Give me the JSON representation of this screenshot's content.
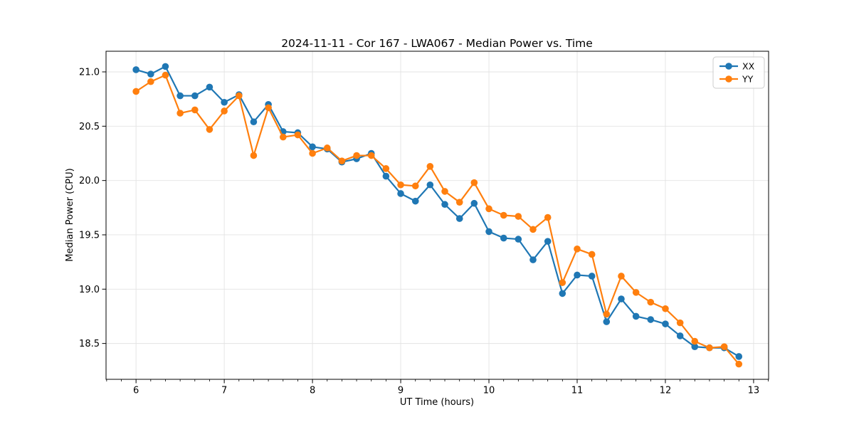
{
  "figure": {
    "background": "#ffffff"
  },
  "chart_data": {
    "type": "line",
    "title": "2024-11-11 - Cor 167 - LWA067 - Median Power vs. Time",
    "xlabel": "UT Time (hours)",
    "ylabel": "Median Power (CPU)",
    "x": [
      6.0,
      6.167,
      6.333,
      6.5,
      6.667,
      6.833,
      7.0,
      7.167,
      7.333,
      7.5,
      7.667,
      7.833,
      8.0,
      8.167,
      8.333,
      8.5,
      8.667,
      8.833,
      9.0,
      9.167,
      9.333,
      9.5,
      9.667,
      9.833,
      10.0,
      10.167,
      10.333,
      10.5,
      10.667,
      10.833,
      11.0,
      11.167,
      11.333,
      11.5,
      11.667,
      11.833,
      12.0,
      12.167,
      12.333,
      12.5,
      12.667,
      12.833
    ],
    "series": [
      {
        "name": "XX",
        "color": "#1f77b4",
        "values": [
          21.02,
          20.98,
          21.05,
          20.78,
          20.78,
          20.86,
          20.72,
          20.79,
          20.54,
          20.7,
          20.45,
          20.44,
          20.31,
          20.29,
          20.17,
          20.2,
          20.25,
          20.04,
          19.88,
          19.81,
          19.96,
          19.78,
          19.65,
          19.79,
          19.53,
          19.47,
          19.46,
          19.27,
          19.44,
          18.96,
          19.13,
          19.12,
          18.7,
          18.91,
          18.75,
          18.72,
          18.68,
          18.57,
          18.47,
          18.46,
          18.46,
          18.38
        ]
      },
      {
        "name": "YY",
        "color": "#ff7f0e",
        "values": [
          20.82,
          20.91,
          20.97,
          20.62,
          20.65,
          20.47,
          20.64,
          20.78,
          20.23,
          20.67,
          20.4,
          20.42,
          20.25,
          20.3,
          20.18,
          20.23,
          20.23,
          20.11,
          19.96,
          19.95,
          20.13,
          19.9,
          19.8,
          19.98,
          19.74,
          19.68,
          19.67,
          19.55,
          19.66,
          19.06,
          19.37,
          19.32,
          18.77,
          19.12,
          18.97,
          18.88,
          18.82,
          18.69,
          18.52,
          18.46,
          18.47,
          18.31
        ]
      }
    ],
    "xlim": [
      5.66,
      13.17
    ],
    "ylim": [
      18.17,
      21.19
    ],
    "x_ticks": [
      6,
      7,
      8,
      9,
      10,
      11,
      12,
      13
    ],
    "y_ticks": [
      18.5,
      19.0,
      19.5,
      20.0,
      20.5,
      21.0
    ],
    "x_minor_ticks_per_hour": 6,
    "grid": "major",
    "grid_color": "#e3e3e3",
    "spine_color": "#000000",
    "legend_position": "upper right",
    "legend_entries": [
      "XX",
      "YY"
    ],
    "marker": "o",
    "line_width": 2.2,
    "marker_radius": 4.8
  }
}
